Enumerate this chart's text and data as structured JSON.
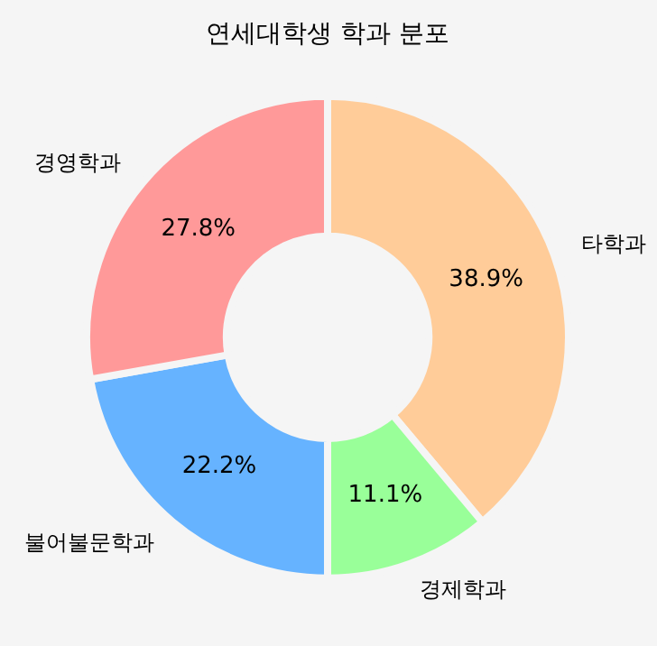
{
  "chart_data": {
    "type": "donut",
    "title": "연세대학생 학과 분포",
    "categories": [
      "타학과",
      "경제학과",
      "불어불문학과",
      "경영학과"
    ],
    "values": [
      38.9,
      11.1,
      22.2,
      27.8
    ],
    "colors": [
      "#ffcc99",
      "#99ff99",
      "#66b3ff",
      "#ff9999"
    ],
    "value_labels": [
      "38.9%",
      "11.1%",
      "22.2%",
      "27.8%"
    ],
    "legend": false
  }
}
